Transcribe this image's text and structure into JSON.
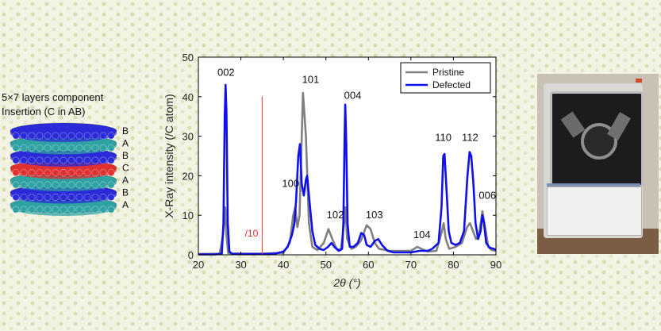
{
  "schematic": {
    "title_line1": "5×7 layers component",
    "title_line2": "Insertion (C in AB)",
    "layers": [
      {
        "label": "B",
        "color": "#2a2ad8"
      },
      {
        "label": "A",
        "color": "#2fa3a3"
      },
      {
        "label": "B",
        "color": "#2a2ad8"
      },
      {
        "label": "C",
        "color": "#e03030"
      },
      {
        "label": "A",
        "color": "#2fa3a3"
      },
      {
        "label": "B",
        "color": "#2a2ad8"
      },
      {
        "label": "A",
        "color": "#2fa3a3"
      }
    ]
  },
  "chart_data": {
    "type": "line",
    "xlabel": "2θ (°)",
    "ylabel": "X-Ray intensity (/C atom)",
    "xlim": [
      20,
      90
    ],
    "ylim": [
      0,
      50
    ],
    "xticks": [
      20,
      30,
      40,
      50,
      60,
      70,
      80,
      90
    ],
    "yticks": [
      0,
      10,
      20,
      30,
      40,
      50
    ],
    "grid": false,
    "legend_position": "top-right",
    "divider": {
      "x": 35,
      "label": "/10",
      "color": "#e53030"
    },
    "series": [
      {
        "name": "Pristine",
        "color": "#808080",
        "points": [
          [
            20,
            0.2
          ],
          [
            25,
            0.3
          ],
          [
            25.8,
            5
          ],
          [
            26.3,
            12
          ],
          [
            26.6,
            5
          ],
          [
            27,
            0.4
          ],
          [
            30,
            0.3
          ],
          [
            35,
            0.3
          ],
          [
            40,
            0.5
          ],
          [
            41.5,
            3
          ],
          [
            42.3,
            10
          ],
          [
            42.8,
            12
          ],
          [
            43.3,
            7
          ],
          [
            43.8,
            10
          ],
          [
            44.6,
            41
          ],
          [
            45.3,
            30
          ],
          [
            46,
            8
          ],
          [
            46.8,
            2
          ],
          [
            48,
            1.2
          ],
          [
            49.5,
            3
          ],
          [
            50.6,
            6.5
          ],
          [
            51.5,
            4
          ],
          [
            52.5,
            1.5
          ],
          [
            53.5,
            1.2
          ],
          [
            54.3,
            8
          ],
          [
            54.6,
            12
          ],
          [
            55,
            4
          ],
          [
            56,
            1.5
          ],
          [
            57,
            2
          ],
          [
            58.2,
            3.5
          ],
          [
            59.6,
            7.5
          ],
          [
            60.5,
            6.5
          ],
          [
            61.5,
            3
          ],
          [
            62.5,
            1.5
          ],
          [
            65,
            1
          ],
          [
            68,
            1
          ],
          [
            70,
            1
          ],
          [
            71.5,
            2
          ],
          [
            72.5,
            1.5
          ],
          [
            74,
            0.8
          ],
          [
            76,
            1
          ],
          [
            77.3,
            6
          ],
          [
            77.7,
            8
          ],
          [
            78.2,
            4
          ],
          [
            79,
            1.5
          ],
          [
            80.5,
            2
          ],
          [
            82,
            3
          ],
          [
            83.2,
            7
          ],
          [
            83.9,
            8
          ],
          [
            84.6,
            6
          ],
          [
            85.3,
            4
          ],
          [
            86,
            5
          ],
          [
            86.8,
            11
          ],
          [
            87.6,
            6
          ],
          [
            88.2,
            2
          ],
          [
            89,
            1.2
          ],
          [
            90,
            1
          ]
        ]
      },
      {
        "name": "Defected",
        "color": "#1010ee",
        "points": [
          [
            20,
            0.1
          ],
          [
            24,
            0.1
          ],
          [
            25.5,
            0.3
          ],
          [
            25.9,
            8
          ],
          [
            26.2,
            35
          ],
          [
            26.4,
            43
          ],
          [
            26.6,
            36
          ],
          [
            26.9,
            8
          ],
          [
            27.3,
            0.8
          ],
          [
            28,
            0.2
          ],
          [
            30,
            0.2
          ],
          [
            35,
            0.2
          ],
          [
            38,
            0.3
          ],
          [
            40,
            0.8
          ],
          [
            41,
            2
          ],
          [
            42,
            5
          ],
          [
            42.6,
            8
          ],
          [
            43,
            14
          ],
          [
            43.5,
            25
          ],
          [
            43.9,
            28
          ],
          [
            44.3,
            18
          ],
          [
            44.8,
            15
          ],
          [
            45.3,
            19
          ],
          [
            45.6,
            20
          ],
          [
            46.1,
            14
          ],
          [
            46.8,
            6
          ],
          [
            47.5,
            2.5
          ],
          [
            48.5,
            1.5
          ],
          [
            49.5,
            1.2
          ],
          [
            50.5,
            2
          ],
          [
            51.3,
            3
          ],
          [
            52,
            2
          ],
          [
            53,
            1
          ],
          [
            53.8,
            1.5
          ],
          [
            54.1,
            8
          ],
          [
            54.4,
            30
          ],
          [
            54.55,
            38
          ],
          [
            54.8,
            28
          ],
          [
            55.1,
            8
          ],
          [
            55.6,
            2
          ],
          [
            56.5,
            2
          ],
          [
            57.5,
            3
          ],
          [
            58.3,
            5.5
          ],
          [
            59,
            5
          ],
          [
            59.6,
            2.5
          ],
          [
            60.5,
            2
          ],
          [
            61.5,
            3.5
          ],
          [
            62.3,
            4
          ],
          [
            63.2,
            2.5
          ],
          [
            64.5,
            1
          ],
          [
            66,
            0.6
          ],
          [
            68,
            0.6
          ],
          [
            70,
            0.6
          ],
          [
            72,
            1
          ],
          [
            74,
            1
          ],
          [
            75,
            1.5
          ],
          [
            76.5,
            3
          ],
          [
            77.2,
            12
          ],
          [
            77.6,
            25
          ],
          [
            77.9,
            25.5
          ],
          [
            78.3,
            18
          ],
          [
            78.9,
            6
          ],
          [
            79.5,
            3
          ],
          [
            80.5,
            2.5
          ],
          [
            81.5,
            3
          ],
          [
            82.5,
            6
          ],
          [
            83.3,
            20
          ],
          [
            83.8,
            26
          ],
          [
            84.2,
            25
          ],
          [
            84.7,
            18
          ],
          [
            85.2,
            8
          ],
          [
            85.8,
            4
          ],
          [
            86.4,
            6
          ],
          [
            86.8,
            10
          ],
          [
            87.2,
            8
          ],
          [
            87.7,
            3
          ],
          [
            88.5,
            1.8
          ],
          [
            89.5,
            1.5
          ],
          [
            90,
            1.2
          ]
        ]
      }
    ],
    "annotations": [
      {
        "text": "002",
        "x": 26.5,
        "y": 45.3
      },
      {
        "text": "101",
        "x": 46.4,
        "y": 43.5
      },
      {
        "text": "004",
        "x": 56.3,
        "y": 39.5
      },
      {
        "text": "100",
        "x": 41.7,
        "y": 17.2
      },
      {
        "text": "102",
        "x": 52.2,
        "y": 9.2
      },
      {
        "text": "103",
        "x": 61.4,
        "y": 9.2
      },
      {
        "text": "104",
        "x": 72.6,
        "y": 4.2
      },
      {
        "text": "110",
        "x": 77.6,
        "y": 28.8
      },
      {
        "text": "112",
        "x": 83.9,
        "y": 28.8
      },
      {
        "text": "006",
        "x": 88,
        "y": 14.2
      }
    ]
  },
  "photo": {
    "subject": "x-ray-diffractometer"
  }
}
